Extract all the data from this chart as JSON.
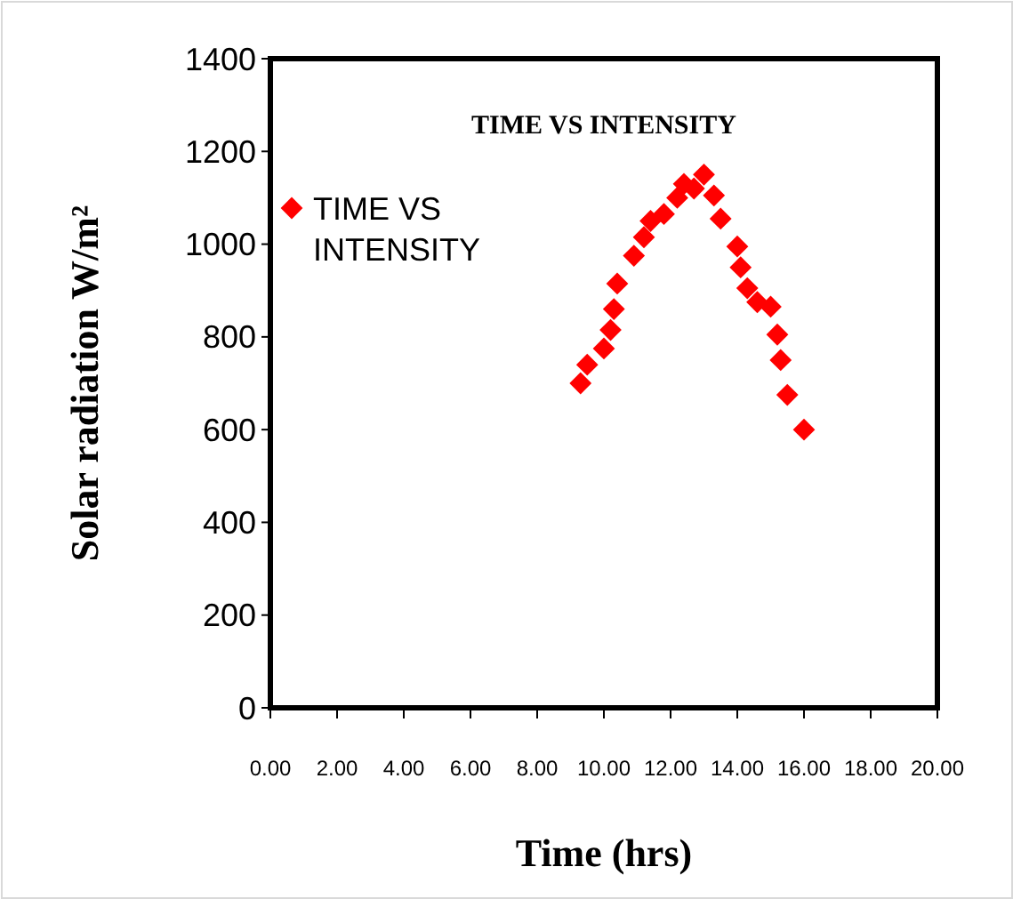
{
  "chart_data": {
    "type": "scatter",
    "title": "TIME VS INTENSITY",
    "xlabel": "Time (hrs)",
    "ylabel": "Solar radiation W/m²",
    "xlim": [
      0,
      20
    ],
    "ylim": [
      0,
      1400
    ],
    "xticks": [
      {
        "value": 0,
        "label": "0.00"
      },
      {
        "value": 2,
        "label": "2.00"
      },
      {
        "value": 4,
        "label": "4.00"
      },
      {
        "value": 6,
        "label": "6.00"
      },
      {
        "value": 8,
        "label": "8.00"
      },
      {
        "value": 10,
        "label": "10.00"
      },
      {
        "value": 12,
        "label": "12.00"
      },
      {
        "value": 14,
        "label": "14.00"
      },
      {
        "value": 16,
        "label": "16.00"
      },
      {
        "value": 18,
        "label": "18.00"
      },
      {
        "value": 20,
        "label": "20.00"
      }
    ],
    "yticks": [
      0,
      200,
      400,
      600,
      800,
      1000,
      1200,
      1400
    ],
    "grid": false,
    "legend": "top left",
    "marker": "diamond",
    "series": [
      {
        "name": "TIME VS INTENSITY",
        "color": "#ff0000",
        "x": [
          9.3,
          9.5,
          10.0,
          10.2,
          10.3,
          10.4,
          10.9,
          11.2,
          11.4,
          11.8,
          12.2,
          12.4,
          12.7,
          13.0,
          13.3,
          13.5,
          14.0,
          14.1,
          14.3,
          14.6,
          15.0,
          15.2,
          15.3,
          15.5,
          16.0
        ],
        "values": [
          700,
          740,
          775,
          815,
          860,
          915,
          975,
          1015,
          1050,
          1065,
          1100,
          1130,
          1120,
          1150,
          1105,
          1055,
          995,
          950,
          905,
          875,
          865,
          805,
          750,
          675,
          600
        ]
      }
    ]
  }
}
